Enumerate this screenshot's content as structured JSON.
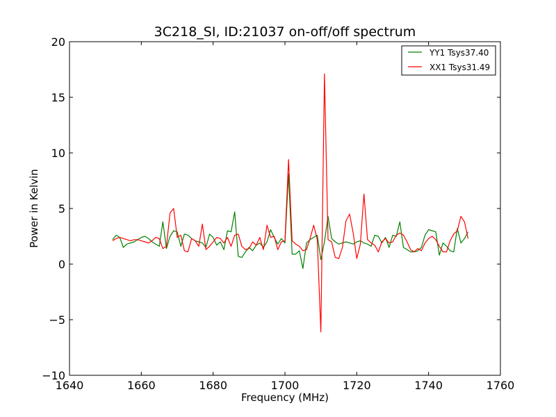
{
  "chart_data": {
    "type": "line",
    "title": "3C218_SI, ID:21037 on-off/off spectrum",
    "xlabel": "Frequency (MHz)",
    "ylabel": "Power in Kelvin",
    "xlim": [
      1640,
      1760
    ],
    "ylim": [
      -10,
      20
    ],
    "xticks": [
      "1640",
      "1660",
      "1680",
      "1700",
      "1720",
      "1740",
      "1760"
    ],
    "yticks": [
      "−10",
      "−5",
      "0",
      "5",
      "10",
      "15",
      "20"
    ],
    "grid": false,
    "legend_position": "top-right",
    "series": [
      {
        "name": "YY1 Tsys37.40",
        "color": "#008000",
        "x": [
          1652,
          1653,
          1654,
          1655,
          1656,
          1657,
          1658,
          1659,
          1660,
          1661,
          1662,
          1663,
          1664,
          1665,
          1666,
          1667,
          1668,
          1669,
          1670,
          1671,
          1672,
          1673,
          1674,
          1675,
          1676,
          1677,
          1678,
          1679,
          1680,
          1681,
          1682,
          1683,
          1684,
          1685,
          1686,
          1687,
          1688,
          1689,
          1690,
          1691,
          1692,
          1693,
          1694,
          1695,
          1696,
          1697,
          1698,
          1699,
          1700,
          1701,
          1702,
          1703,
          1704,
          1705,
          1706,
          1707,
          1708,
          1709,
          1710,
          1711,
          1712,
          1713,
          1714,
          1715,
          1716,
          1717,
          1718,
          1719,
          1720,
          1721,
          1722,
          1723,
          1724,
          1725,
          1726,
          1727,
          1728,
          1729,
          1730,
          1731,
          1732,
          1733,
          1734,
          1735,
          1736,
          1737,
          1738,
          1739,
          1740,
          1741,
          1742,
          1743,
          1744,
          1745,
          1746,
          1747,
          1748,
          1749,
          1750,
          1751
        ],
        "values": [
          2.2,
          2.6,
          2.4,
          1.5,
          1.8,
          1.9,
          2.0,
          2.2,
          2.4,
          2.5,
          2.3,
          2.0,
          1.8,
          1.6,
          3.8,
          1.4,
          2.5,
          3.0,
          2.9,
          1.6,
          2.7,
          2.6,
          2.3,
          2.1,
          2.0,
          1.9,
          1.5,
          2.7,
          2.4,
          1.7,
          2.0,
          1.3,
          3.0,
          2.9,
          4.7,
          0.7,
          0.6,
          1.1,
          1.5,
          1.2,
          1.7,
          1.9,
          1.5,
          2.0,
          3.1,
          2.4,
          1.8,
          2.3,
          1.9,
          8.1,
          0.9,
          0.9,
          1.2,
          -0.4,
          1.9,
          2.2,
          2.4,
          2.6,
          0.4,
          2.0,
          4.3,
          2.3,
          2.0,
          1.8,
          1.9,
          2.0,
          1.9,
          1.8,
          2.0,
          2.1,
          1.9,
          1.8,
          1.6,
          2.6,
          2.5,
          1.9,
          2.4,
          1.5,
          2.6,
          2.5,
          3.8,
          1.5,
          1.3,
          1.1,
          1.1,
          1.2,
          1.5,
          2.6,
          3.1,
          3.0,
          2.9,
          0.8,
          1.9,
          1.6,
          1.2,
          1.1,
          3.2,
          1.9,
          2.3,
          2.9
        ]
      },
      {
        "name": "XX1 Tsys31.49",
        "color": "#ff0000",
        "x": [
          1652,
          1653,
          1654,
          1655,
          1656,
          1657,
          1658,
          1659,
          1660,
          1661,
          1662,
          1663,
          1664,
          1665,
          1666,
          1667,
          1668,
          1669,
          1670,
          1671,
          1672,
          1673,
          1674,
          1675,
          1676,
          1677,
          1678,
          1679,
          1680,
          1681,
          1682,
          1683,
          1684,
          1685,
          1686,
          1687,
          1688,
          1689,
          1690,
          1691,
          1692,
          1693,
          1694,
          1695,
          1696,
          1697,
          1698,
          1699,
          1700,
          1701,
          1702,
          1703,
          1704,
          1705,
          1706,
          1707,
          1708,
          1709,
          1710,
          1711,
          1712,
          1713,
          1714,
          1715,
          1716,
          1717,
          1718,
          1719,
          1720,
          1721,
          1722,
          1723,
          1724,
          1725,
          1726,
          1727,
          1728,
          1729,
          1730,
          1731,
          1732,
          1733,
          1734,
          1735,
          1736,
          1737,
          1738,
          1739,
          1740,
          1741,
          1742,
          1743,
          1744,
          1745,
          1746,
          1747,
          1748,
          1749,
          1750,
          1751
        ],
        "values": [
          2.1,
          2.3,
          2.4,
          2.3,
          2.2,
          2.1,
          2.2,
          2.2,
          2.1,
          2.0,
          1.9,
          2.1,
          2.4,
          2.3,
          1.4,
          1.6,
          4.6,
          5.0,
          2.4,
          2.6,
          1.2,
          1.1,
          2.3,
          2.1,
          1.6,
          3.6,
          1.3,
          1.6,
          2.0,
          2.4,
          2.3,
          1.9,
          2.4,
          1.6,
          2.6,
          2.7,
          1.6,
          1.3,
          1.4,
          2.0,
          1.7,
          2.4,
          1.3,
          3.5,
          2.4,
          2.5,
          1.3,
          2.0,
          2.1,
          9.4,
          2.1,
          1.8,
          1.6,
          1.2,
          1.3,
          2.3,
          3.5,
          2.2,
          -6.1,
          17.1,
          2.2,
          2.0,
          0.6,
          0.5,
          1.5,
          3.9,
          4.5,
          2.8,
          0.5,
          1.8,
          6.3,
          2.2,
          1.9,
          1.7,
          1.1,
          2.0,
          2.3,
          1.9,
          2.0,
          2.6,
          2.8,
          2.6,
          2.0,
          1.3,
          1.1,
          1.4,
          1.2,
          1.9,
          2.3,
          2.5,
          2.2,
          1.6,
          1.1,
          1.1,
          2.1,
          2.7,
          3.0,
          4.3,
          3.8,
          2.3
        ]
      }
    ]
  }
}
